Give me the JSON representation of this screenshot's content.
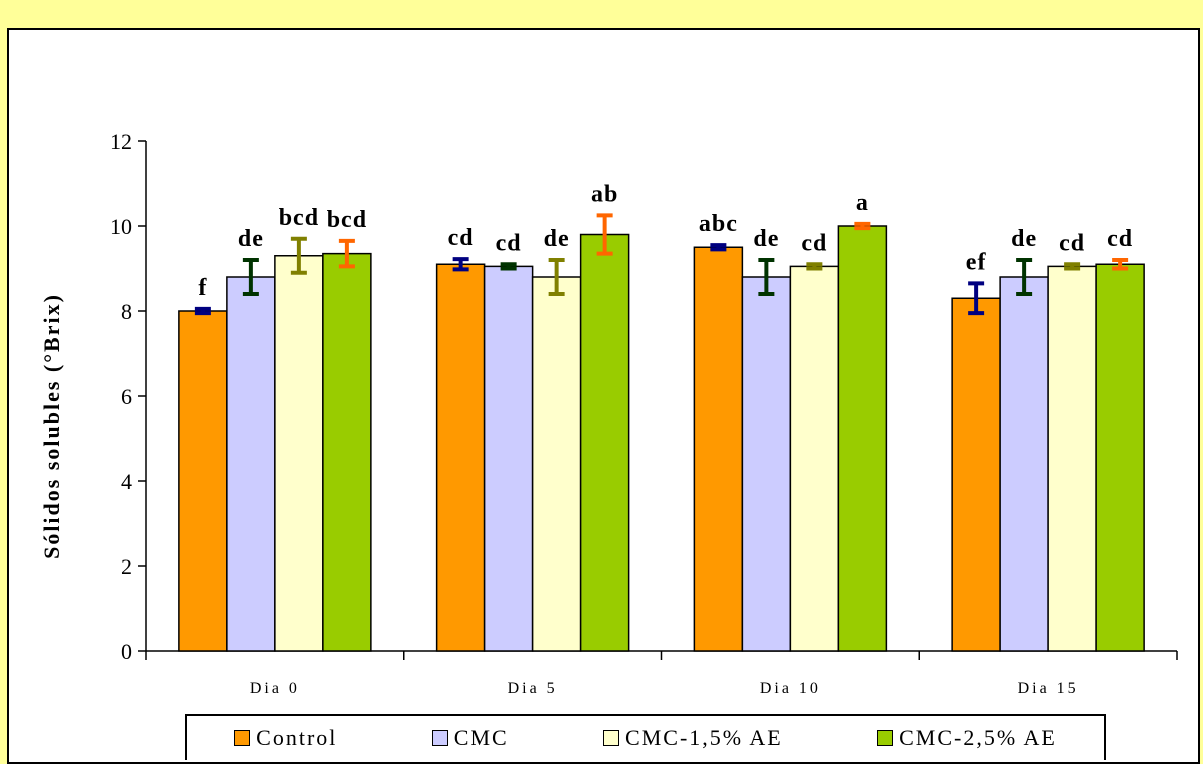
{
  "chart_data": {
    "type": "bar",
    "title": "",
    "xlabel": "",
    "ylabel": "Sólidos solubles (°Brix)",
    "ylim": [
      0,
      12
    ],
    "yticks": [
      0,
      2,
      4,
      6,
      8,
      10,
      12
    ],
    "grid": false,
    "legend_position": "bottom",
    "categories": [
      "Dia 0",
      "Dia 5",
      "Dia 10",
      "Dia 15"
    ],
    "series": [
      {
        "name": "Control",
        "color": "#ff9900",
        "values": [
          8.0,
          9.1,
          9.5,
          8.3
        ],
        "errors": [
          0.05,
          0.12,
          0.05,
          0.35
        ],
        "labels": [
          "f",
          "cd",
          "abc",
          "ef"
        ]
      },
      {
        "name": "CMC",
        "color": "#ccccff",
        "values": [
          8.8,
          9.05,
          8.8,
          8.8
        ],
        "errors": [
          0.4,
          0.05,
          0.4,
          0.4
        ],
        "labels": [
          "de",
          "cd",
          "de",
          "de"
        ]
      },
      {
        "name": "CMC-1,5% AE",
        "color": "#ffffcc",
        "values": [
          9.3,
          8.8,
          9.05,
          9.05
        ],
        "errors": [
          0.4,
          0.4,
          0.05,
          0.05
        ],
        "labels": [
          "bcd",
          "de",
          "cd",
          "cd"
        ]
      },
      {
        "name": "CMC-2,5% AE",
        "color": "#99cc00",
        "values": [
          9.35,
          9.8,
          10.0,
          9.1
        ],
        "errors": [
          0.3,
          0.45,
          0.05,
          0.1
        ],
        "labels": [
          "bcd",
          "ab",
          "a",
          "cd"
        ]
      }
    ],
    "error_bar_colors": [
      "#000080",
      "#003300",
      "#808000",
      "#ff6600"
    ]
  }
}
